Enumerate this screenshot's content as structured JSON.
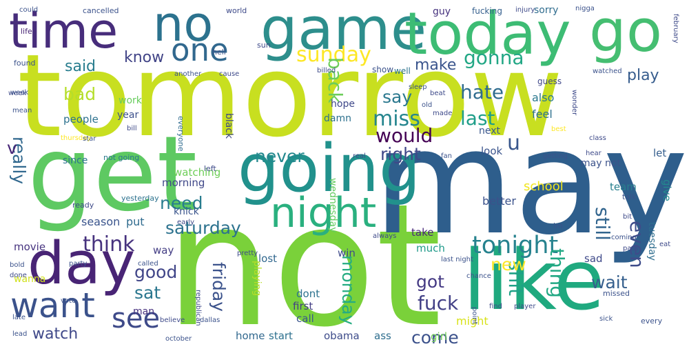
{
  "canvas": {
    "background": "#ffffff"
  },
  "palette_note": "viridis",
  "words": [
    {
      "text": "tomorrow",
      "color": "#c8df20"
    },
    {
      "text": "not",
      "color": "#7ad13a"
    },
    {
      "text": "may",
      "color": "#2e5e8c"
    },
    {
      "text": "like",
      "color": "#1fa97f"
    },
    {
      "text": "get",
      "color": "#5ec962"
    },
    {
      "text": "going",
      "color": "#21918c"
    },
    {
      "text": "game",
      "color": "#2d8e8c"
    },
    {
      "text": "today",
      "color": "#3dbc74"
    },
    {
      "text": "go",
      "color": "#45be71"
    },
    {
      "text": "time",
      "color": "#472d7b"
    },
    {
      "text": "no",
      "color": "#2c728e"
    },
    {
      "text": "day",
      "color": "#482475"
    },
    {
      "text": "one",
      "color": "#31688e"
    },
    {
      "text": "night",
      "color": "#2ab07f"
    },
    {
      "text": "want",
      "color": "#3b528b"
    },
    {
      "text": "see",
      "color": "#3e4a89"
    },
    {
      "text": "tonight",
      "color": "#26828e"
    },
    {
      "text": "sunday",
      "color": "#fde725"
    },
    {
      "text": "said",
      "color": "#287d8e"
    },
    {
      "text": "know",
      "color": "#414487"
    },
    {
      "text": "gonna",
      "color": "#22a785"
    },
    {
      "text": "play",
      "color": "#365c8d"
    },
    {
      "text": "make",
      "color": "#3a548c"
    },
    {
      "text": "back",
      "color": "#6ccd5a"
    },
    {
      "text": "say",
      "color": "#2a788e"
    },
    {
      "text": "miss",
      "color": "#25858e"
    },
    {
      "text": "hate",
      "color": "#2f6c8e"
    },
    {
      "text": "last",
      "color": "#1f9e89"
    },
    {
      "text": "would",
      "color": "#440154"
    },
    {
      "text": "right",
      "color": "#3f4788"
    },
    {
      "text": "u",
      "color": "#39568c"
    },
    {
      "text": "bad",
      "color": "#b5de2b"
    },
    {
      "text": "work",
      "color": "#67cc5c"
    },
    {
      "text": "year",
      "color": "#3c508b"
    },
    {
      "text": "people",
      "color": "#2c718e"
    },
    {
      "text": "really",
      "color": "#31688e"
    },
    {
      "text": "v",
      "color": "#482677"
    },
    {
      "text": "never",
      "color": "#23888e"
    },
    {
      "text": "need",
      "color": "#287c8e"
    },
    {
      "text": "saturday",
      "color": "#2c728e"
    },
    {
      "text": "think",
      "color": "#46327e"
    },
    {
      "text": "good",
      "color": "#404588"
    },
    {
      "text": "sat",
      "color": "#2a768e"
    },
    {
      "text": "friday",
      "color": "#3b528b"
    },
    {
      "text": "monday",
      "color": "#25ac82"
    },
    {
      "text": "still",
      "color": "#32658e"
    },
    {
      "text": "even",
      "color": "#3e4c8a"
    },
    {
      "text": "thing",
      "color": "#22a884"
    },
    {
      "text": "shit",
      "color": "#1fa187"
    },
    {
      "text": "fuck",
      "color": "#424086"
    },
    {
      "text": "got",
      "color": "#443983"
    },
    {
      "text": "new",
      "color": "#fde725"
    },
    {
      "text": "wait",
      "color": "#355f8d"
    },
    {
      "text": "come",
      "color": "#3b518b"
    },
    {
      "text": "watch",
      "color": "#3f4889"
    },
    {
      "text": "also",
      "color": "#2a788e"
    },
    {
      "text": "feel",
      "color": "#2d708e"
    },
    {
      "text": "look",
      "color": "#3a548c"
    },
    {
      "text": "let",
      "color": "#355e8d"
    },
    {
      "text": "team",
      "color": "#277f8e"
    },
    {
      "text": "give",
      "color": "#23898e"
    },
    {
      "text": "school",
      "color": "#f1e51d"
    },
    {
      "text": "better",
      "color": "#3b528b"
    },
    {
      "text": "take",
      "color": "#482878"
    },
    {
      "text": "much",
      "color": "#1f9a8a"
    },
    {
      "text": "sad",
      "color": "#3e4989"
    },
    {
      "text": "dont",
      "color": "#2c728e"
    },
    {
      "text": "first",
      "color": "#433e85"
    },
    {
      "text": "call",
      "color": "#39568c"
    },
    {
      "text": "might",
      "color": "#d8e219"
    },
    {
      "text": "home",
      "color": "#31688e"
    },
    {
      "text": "start",
      "color": "#2d708e"
    },
    {
      "text": "obama",
      "color": "#3e4c8a"
    },
    {
      "text": "ass",
      "color": "#2e6e8e"
    },
    {
      "text": "girl",
      "color": "#73d056"
    },
    {
      "text": "movie",
      "color": "#46337f"
    },
    {
      "text": "season",
      "color": "#3a548c"
    },
    {
      "text": "put",
      "color": "#2f6b8e"
    },
    {
      "text": "man",
      "color": "#46307e"
    },
    {
      "text": "wanna",
      "color": "#d0e11c"
    },
    {
      "text": "lost",
      "color": "#31678e"
    },
    {
      "text": "win",
      "color": "#3e4989"
    },
    {
      "text": "way",
      "color": "#433d84"
    },
    {
      "text": "morning",
      "color": "#3f4788"
    },
    {
      "text": "knick",
      "color": "#3a548c"
    },
    {
      "text": "watching",
      "color": "#6ece58"
    },
    {
      "text": "since",
      "color": "#2c728e"
    },
    {
      "text": "black",
      "color": "#3e4989"
    },
    {
      "text": "wednesday",
      "color": "#63cb5f"
    },
    {
      "text": "playing",
      "color": "#b8de29"
    },
    {
      "text": "tuesday",
      "color": "#2e6d8e"
    },
    {
      "text": "next",
      "color": "#39568c"
    },
    {
      "text": "hope",
      "color": "#3f4889"
    },
    {
      "text": "damn",
      "color": "#2d718e"
    },
    {
      "text": "sorry",
      "color": "#2f6c8e"
    },
    {
      "text": "guy",
      "color": "#46327e"
    },
    {
      "text": "fucking",
      "color": "#355f8d"
    },
    {
      "text": "show",
      "color": "#3b528b"
    },
    {
      "text": "well",
      "color": "#2c728e"
    },
    {
      "text": "guess",
      "color": "#3f4788"
    },
    {
      "text": "found",
      "color": "#3b528b"
    },
    {
      "text": "life",
      "color": "#482475"
    },
    {
      "text": "sun",
      "color": "#3e4a89"
    },
    {
      "text": "cancelled",
      "color": "#3b528b"
    },
    {
      "text": "world",
      "color": "#3e4a89"
    },
    {
      "text": "hell",
      "color": "#3b528b"
    },
    {
      "text": "everyone",
      "color": "#2f6b8e"
    },
    {
      "text": "yesterday",
      "color": "#2c728e"
    },
    {
      "text": "ready",
      "color": "#3e4a89"
    },
    {
      "text": "not going",
      "color": "#2a788e"
    },
    {
      "text": "may not",
      "color": "#3b528b"
    },
    {
      "text": "left",
      "color": "#3e4a89"
    },
    {
      "text": "talk",
      "color": "#3b528b"
    },
    {
      "text": "im",
      "color": "#3b528b"
    },
    {
      "text": "missed",
      "color": "#3b528b"
    },
    {
      "text": "every",
      "color": "#3b528b"
    },
    {
      "text": "find",
      "color": "#3e4a89"
    },
    {
      "text": "point",
      "color": "#3b528b"
    },
    {
      "text": "player",
      "color": "#3e4a89"
    },
    {
      "text": "dallas",
      "color": "#3b528b"
    },
    {
      "text": "believe",
      "color": "#3e4a89"
    },
    {
      "text": "called",
      "color": "#3b528b"
    },
    {
      "text": "pretty",
      "color": "#3e4a89"
    },
    {
      "text": "last night",
      "color": "#3b528b"
    },
    {
      "text": "thursday",
      "color": "#fde725"
    },
    {
      "text": "mean",
      "color": "#3b528b"
    },
    {
      "text": "week",
      "color": "#3e4a89"
    },
    {
      "text": "star",
      "color": "#3b528b"
    },
    {
      "text": "bill",
      "color": "#3e4a89"
    },
    {
      "text": "best",
      "color": "#fde725"
    },
    {
      "text": "sleep",
      "color": "#3b528b"
    },
    {
      "text": "early",
      "color": "#3e4a89"
    },
    {
      "text": "party",
      "color": "#3b528b"
    },
    {
      "text": "done",
      "color": "#3e4a89"
    },
    {
      "text": "bold",
      "color": "#3b528b"
    },
    {
      "text": "hear",
      "color": "#3e4a89"
    },
    {
      "text": "lead",
      "color": "#3b528b"
    },
    {
      "text": "always",
      "color": "#3e4a89"
    },
    {
      "text": "chance",
      "color": "#3b528b"
    },
    {
      "text": "beat",
      "color": "#3e4a89"
    },
    {
      "text": "old",
      "color": "#3b528b"
    },
    {
      "text": "made",
      "color": "#3e4a89"
    },
    {
      "text": "another",
      "color": "#3b528b"
    },
    {
      "text": "cause",
      "color": "#3e4a89"
    },
    {
      "text": "could",
      "color": "#3b528b"
    },
    {
      "text": "injury",
      "color": "#3e4a89"
    },
    {
      "text": "nigga",
      "color": "#3b528b"
    },
    {
      "text": "february",
      "color": "#3e4a89"
    },
    {
      "text": "watched",
      "color": "#3b528b"
    },
    {
      "text": "wonder",
      "color": "#3e4a89"
    },
    {
      "text": "getting",
      "color": "#3b528b"
    },
    {
      "text": "class",
      "color": "#3e4a89"
    },
    {
      "text": "week",
      "color": "#3b528b"
    },
    {
      "text": "bit",
      "color": "#3e4a89"
    },
    {
      "text": "coming",
      "color": "#3b528b"
    },
    {
      "text": "pass",
      "color": "#3e4a89"
    },
    {
      "text": "sick",
      "color": "#3b528b"
    },
    {
      "text": "eat",
      "color": "#3e4a89"
    },
    {
      "text": "october",
      "color": "#3b528b"
    },
    {
      "text": "republican",
      "color": "#3e4a89"
    },
    {
      "text": "vote",
      "color": "#3b528b"
    },
    {
      "text": "real",
      "color": "#3e4a89"
    },
    {
      "text": "fan",
      "color": "#3b528b"
    },
    {
      "text": "billed",
      "color": "#3e4a89"
    },
    {
      "text": "late",
      "color": "#3b528b"
    }
  ]
}
